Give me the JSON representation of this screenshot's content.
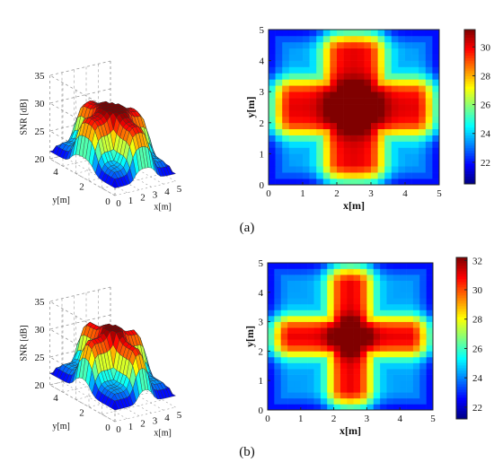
{
  "colors": {
    "frame": "#222222",
    "grid": "#9a9a9a",
    "edge": "#2b2b2b"
  },
  "chart_data": [
    {
      "panel": "(a)",
      "type": "surface3d",
      "zlabel": "SNR [dB]",
      "xlabel": "x[m]",
      "ylabel": "y[m]",
      "zlim": [
        20,
        35
      ],
      "zticks": [
        20,
        25,
        30,
        35
      ],
      "xticks": [
        0,
        1,
        2,
        3,
        4,
        5
      ],
      "yticks": [
        0,
        2,
        4
      ],
      "grid": true,
      "colormap": "jet",
      "color_range": [
        20.5,
        31.2
      ],
      "surface_model": {
        "min_value": 20.5,
        "max_value": 31.2,
        "arm_half_width": 0.85,
        "center_peak": 1.0
      }
    },
    {
      "panel": "(a)",
      "type": "heatmap",
      "xlabel": "x[m]",
      "ylabel": "y[m]",
      "xlim": [
        0,
        5
      ],
      "ylim": [
        0,
        5
      ],
      "xticks": [
        0,
        1,
        2,
        3,
        4,
        5
      ],
      "yticks": [
        0,
        1,
        2,
        3,
        4,
        5
      ],
      "cells": 25,
      "colormap": "jet",
      "colorbar": {
        "ticks": [
          22,
          24,
          26,
          28,
          30
        ],
        "range": [
          20.5,
          31.2
        ]
      }
    },
    {
      "panel": "(b)",
      "type": "surface3d",
      "zlabel": "SNR [dB]",
      "xlabel": "x[m]",
      "ylabel": "y[m]",
      "zlim": [
        20,
        35
      ],
      "zticks": [
        20,
        25,
        30,
        35
      ],
      "xticks": [
        0,
        1,
        2,
        3,
        4,
        5
      ],
      "yticks": [
        0,
        2,
        4
      ],
      "grid": true,
      "colormap": "jet",
      "color_range": [
        21.2,
        32.2
      ],
      "surface_model": {
        "min_value": 21.2,
        "max_value": 32.2,
        "arm_half_width": 0.62,
        "center_peak": 1.0
      }
    },
    {
      "panel": "(b)",
      "type": "heatmap",
      "xlabel": "x[m]",
      "ylabel": "y[m]",
      "xlim": [
        0,
        5
      ],
      "ylim": [
        0,
        5
      ],
      "xticks": [
        0,
        1,
        2,
        3,
        4,
        5
      ],
      "yticks": [
        0,
        1,
        2,
        3,
        4,
        5
      ],
      "cells": 25,
      "colormap": "jet",
      "colorbar": {
        "ticks": [
          22,
          24,
          26,
          28,
          30,
          32
        ],
        "range": [
          21.2,
          32.2
        ]
      }
    }
  ],
  "captions": [
    "(a)",
    "(b)"
  ]
}
